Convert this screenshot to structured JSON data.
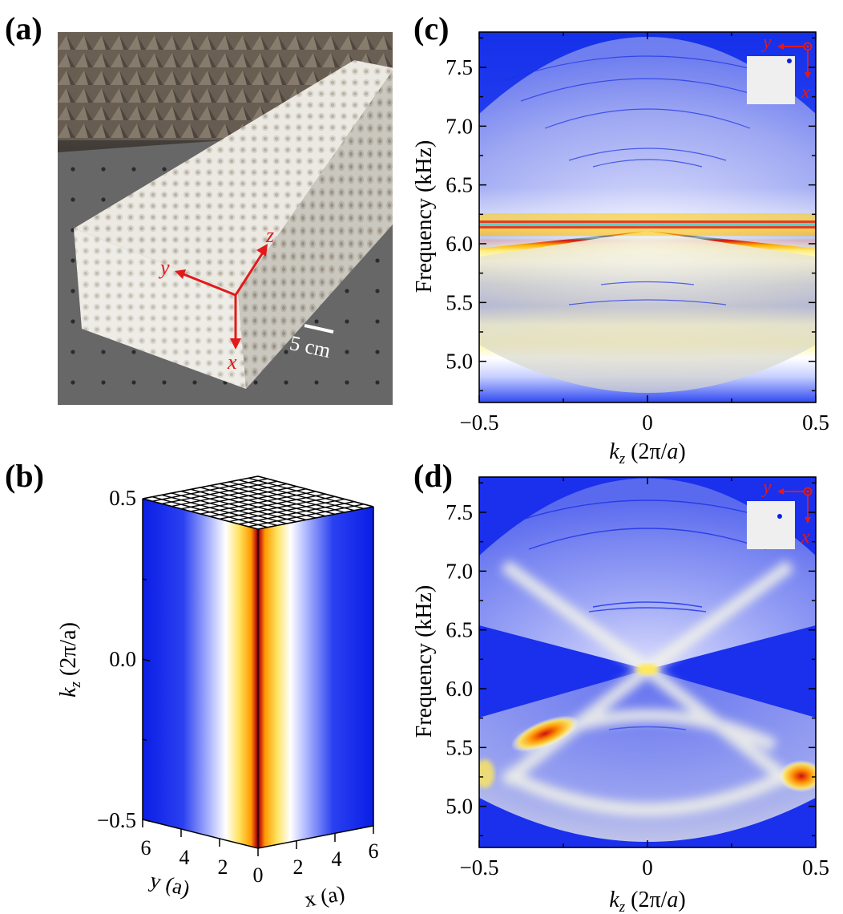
{
  "panels": {
    "a": {
      "label": "(a)",
      "axes": {
        "x": "x",
        "y": "y",
        "z": "z"
      },
      "scale_bar": "5 cm"
    },
    "b": {
      "label": "(b)",
      "yaxis": {
        "label": "k",
        "sub": "z",
        "unit": " (2π/a)",
        "ticks": [
          "0.5",
          "0.0",
          "−0.5"
        ]
      },
      "left_ticks": [
        "6",
        "4",
        "2",
        "0"
      ],
      "right_ticks": [
        "2",
        "4",
        "6"
      ],
      "left_label": "y (a)",
      "right_label": "x (a)"
    },
    "c": {
      "label": "(c)",
      "inset_axes": {
        "y": "y",
        "x": "x"
      }
    },
    "d": {
      "label": "(d)",
      "inset_axes": {
        "y": "y",
        "x": "x"
      }
    }
  },
  "chart_data": [
    {
      "type": "heatmap",
      "panel": "c",
      "xlabel": "k_z (2π/a)",
      "ylabel": "Frequency (kHz)",
      "xlim": [
        -0.5,
        0.5
      ],
      "ylim": [
        4.65,
        7.8
      ],
      "xticks": [
        "−0.5",
        "0",
        "0.5"
      ],
      "yticks": [
        "5.0",
        "5.5",
        "6.0",
        "6.5",
        "7.0",
        "7.5"
      ],
      "ytick_values": [
        5.0,
        5.5,
        6.0,
        6.5,
        7.0,
        7.5
      ],
      "xtick_values": [
        -0.5,
        0,
        0.5
      ],
      "features": {
        "flat_band_frequency": 6.1,
        "cone_apex": [
          0,
          6.1
        ]
      }
    },
    {
      "type": "heatmap",
      "panel": "d",
      "xlabel": "k_z (2π/a)",
      "ylabel": "Frequency (kHz)",
      "xlim": [
        -0.5,
        0.5
      ],
      "ylim": [
        4.65,
        7.8
      ],
      "xticks": [
        "−0.5",
        "0",
        "0.5"
      ],
      "yticks": [
        "5.0",
        "5.5",
        "6.0",
        "6.5",
        "7.0",
        "7.5"
      ],
      "ytick_values": [
        5.0,
        5.5,
        6.0,
        6.5,
        7.0,
        7.5
      ],
      "xtick_values": [
        -0.5,
        0,
        0.5
      ],
      "features": {
        "cone_apex": [
          0,
          6.1
        ]
      }
    }
  ],
  "colors": {
    "low": "#0a1ee6",
    "mid": "#ffffff",
    "high": "#ffd400",
    "peak": "#c01010",
    "accent": "#e01a1a",
    "cyan": "#4fd6d0"
  }
}
